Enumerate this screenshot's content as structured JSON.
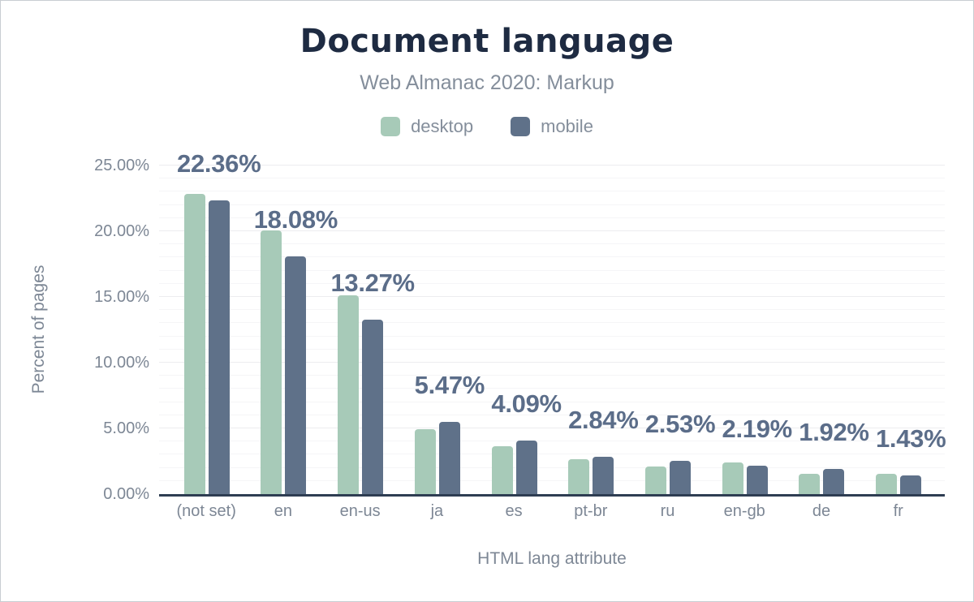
{
  "chart": {
    "title": "Document language",
    "subtitle": "Web Almanac 2020: Markup",
    "legend": [
      {
        "label": "desktop",
        "color": "#a7cab8"
      },
      {
        "label": "mobile",
        "color": "#5f7189"
      }
    ],
    "y_axis": {
      "title": "Percent of pages",
      "ticks": [
        "0.00%",
        "5.00%",
        "10.00%",
        "15.00%",
        "20.00%",
        "25.00%"
      ]
    },
    "x_axis": {
      "title": "HTML lang attribute"
    }
  },
  "chart_data": {
    "type": "bar",
    "title": "Document language",
    "subtitle": "Web Almanac 2020: Markup",
    "xlabel": "HTML lang attribute",
    "ylabel": "Percent of pages",
    "categories": [
      "(not set)",
      "en",
      "en-us",
      "ja",
      "es",
      "pt-br",
      "ru",
      "en-gb",
      "de",
      "fr"
    ],
    "series": [
      {
        "name": "desktop",
        "color": "#a7cab8",
        "values": [
          22.82,
          20.09,
          15.1,
          4.93,
          3.65,
          2.65,
          2.1,
          2.4,
          1.53,
          1.55
        ]
      },
      {
        "name": "mobile",
        "color": "#5f7189",
        "values": [
          22.36,
          18.08,
          13.27,
          5.47,
          4.09,
          2.84,
          2.53,
          2.19,
          1.92,
          1.43
        ]
      }
    ],
    "data_labels": [
      "22.36%",
      "18.08%",
      "13.27%",
      "5.47%",
      "4.09%",
      "2.84%",
      "2.53%",
      "2.19%",
      "1.92%",
      "1.43%"
    ],
    "data_label_series": "mobile",
    "data_label_color": "#5b6d89",
    "ylim": [
      0,
      25
    ],
    "y_minor_step": 1,
    "y_major_step": 5,
    "grid": "horizontal",
    "legend_position": "top",
    "axis_line_color": "#2e3d52",
    "text_color": "#7d8795",
    "title_color": "#1e2b42"
  }
}
